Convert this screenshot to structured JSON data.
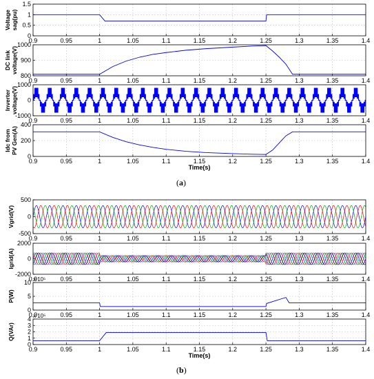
{
  "figure": {
    "label_a_open": "(",
    "label_a_letter": "a",
    "label_a_close": ")",
    "label_b_open": "(",
    "label_b_letter": "b",
    "label_b_close": ")"
  },
  "chart_data": [
    {
      "type": "line",
      "ylabel": "Voltage sag(pu)",
      "ylim": [
        0,
        1.5
      ],
      "yticks": [
        0,
        0.5,
        1,
        1.5
      ],
      "xlim": [
        0.9,
        1.4
      ],
      "xticks": [
        0.9,
        0.95,
        1,
        1.05,
        1.1,
        1.15,
        1.2,
        1.25,
        1.3,
        1.35,
        1.4
      ],
      "grid": true,
      "series": [
        {
          "color": "#0000ff",
          "x": [
            0.9,
            1.0,
            1.004,
            1.008,
            1.25,
            1.251,
            1.4
          ],
          "y": [
            1.0,
            1.0,
            0.85,
            0.7,
            0.7,
            1.0,
            1.0
          ]
        }
      ]
    },
    {
      "type": "line",
      "ylabel": "DC link voltage(V)",
      "ylim": [
        800,
        1000
      ],
      "yticks": [
        800,
        900,
        1000
      ],
      "xlim": [
        0.9,
        1.4
      ],
      "xticks": [
        0.9,
        0.95,
        1,
        1.05,
        1.1,
        1.15,
        1.2,
        1.25,
        1.3,
        1.35,
        1.4
      ],
      "grid": true,
      "series": [
        {
          "color": "#0000ff",
          "x": [
            0.9,
            1.0,
            1.02,
            1.04,
            1.06,
            1.08,
            1.1,
            1.13,
            1.16,
            1.2,
            1.23,
            1.25,
            1.26,
            1.27,
            1.28,
            1.29,
            1.4
          ],
          "y": [
            810,
            810,
            860,
            895,
            920,
            938,
            950,
            965,
            975,
            985,
            992,
            995,
            960,
            920,
            875,
            810,
            810
          ]
        }
      ]
    },
    {
      "type": "line",
      "ylabel": "Inverter voltage(V)",
      "ylim": [
        -1000,
        1000
      ],
      "yticks": [
        -1000,
        0,
        1000
      ],
      "xlim": [
        0.9,
        1.4
      ],
      "xticks": [
        0.9,
        0.95,
        1,
        1.05,
        1.1,
        1.15,
        1.2,
        1.25,
        1.3,
        1.35,
        1.4
      ],
      "grid": true,
      "waveform": {
        "kind": "stepped-pwm",
        "frequency_hz": 50,
        "amplitude": 800,
        "color": "#0000ff"
      }
    },
    {
      "type": "line",
      "ylabel": "Idc from PV Gen(A)",
      "xlabel": "Time(s)",
      "ylim": [
        0,
        400
      ],
      "yticks": [
        0,
        200,
        400
      ],
      "xlim": [
        0.9,
        1.4
      ],
      "xticks": [
        0.9,
        0.95,
        1,
        1.05,
        1.1,
        1.15,
        1.2,
        1.25,
        1.3,
        1.35,
        1.4
      ],
      "grid": true,
      "series": [
        {
          "color": "#0000ff",
          "x": [
            0.9,
            1.0,
            1.02,
            1.04,
            1.06,
            1.08,
            1.1,
            1.13,
            1.16,
            1.2,
            1.23,
            1.25,
            1.26,
            1.27,
            1.28,
            1.29,
            1.4
          ],
          "y": [
            310,
            310,
            240,
            185,
            145,
            115,
            90,
            65,
            48,
            35,
            28,
            25,
            80,
            170,
            260,
            310,
            310
          ]
        }
      ]
    },
    {
      "type": "line",
      "ylabel": "Vgrid(V)",
      "ylim": [
        -500,
        500
      ],
      "yticks": [
        -500,
        0,
        500
      ],
      "xlim": [
        0.9,
        1.4
      ],
      "xticks": [
        0.9,
        0.95,
        1,
        1.05,
        1.1,
        1.15,
        1.2,
        1.25,
        1.3,
        1.35,
        1.4
      ],
      "grid": true,
      "waveform": {
        "kind": "three-phase-sine",
        "frequency_hz": 50,
        "amplitude": 330,
        "colors": [
          "#0000ff",
          "#00aa00",
          "#ff0000"
        ]
      }
    },
    {
      "type": "line",
      "ylabel": "Igrid(A)",
      "ylim": [
        -2000,
        2000
      ],
      "yticks": [
        -2000,
        0,
        2000
      ],
      "xlim": [
        0.9,
        1.4
      ],
      "xticks": [
        0.9,
        0.95,
        1,
        1.05,
        1.1,
        1.15,
        1.2,
        1.25,
        1.3,
        1.35,
        1.4
      ],
      "grid": true,
      "waveform": {
        "kind": "three-phase-sine",
        "frequency_hz": 50,
        "amplitude": 750,
        "colors": [
          "#0000ff",
          "#00aa00",
          "#ff0000",
          "#00bbbb",
          "#cc00cc",
          "#000000"
        ]
      }
    },
    {
      "type": "line",
      "ylabel": "P(W)",
      "multiplier": "x 10⁵",
      "ylim": [
        0,
        10
      ],
      "yticks": [
        0,
        5,
        10
      ],
      "xlim": [
        0.9,
        1.4
      ],
      "xticks": [
        0.9,
        0.95,
        1,
        1.05,
        1.1,
        1.15,
        1.2,
        1.25,
        1.3,
        1.35,
        1.4
      ],
      "grid": true,
      "series": [
        {
          "color": "#0000ff",
          "x": [
            0.9,
            1.0,
            1.001,
            1.25,
            1.251,
            1.28,
            1.285,
            1.4
          ],
          "y": [
            2.6,
            2.6,
            1.3,
            1.3,
            2.4,
            4.6,
            2.6,
            2.6
          ]
        }
      ]
    },
    {
      "type": "line",
      "ylabel": "Q(VAr)",
      "multiplier": "x 10⁵",
      "ylim": [
        0,
        4
      ],
      "yticks": [
        0,
        1,
        2,
        3,
        4
      ],
      "xlim": [
        0.9,
        1.4
      ],
      "xticks": [
        0.9,
        0.95,
        1,
        1.05,
        1.1,
        1.15,
        1.2,
        1.25,
        1.3,
        1.35,
        1.4
      ],
      "xlabel": "Time(s)",
      "grid": true,
      "series": [
        {
          "color": "#0000ff",
          "x": [
            0.9,
            1.0,
            1.01,
            1.25,
            1.252,
            1.4
          ],
          "y": [
            0.6,
            0.6,
            1.9,
            1.9,
            0.6,
            0.6
          ]
        }
      ]
    }
  ]
}
